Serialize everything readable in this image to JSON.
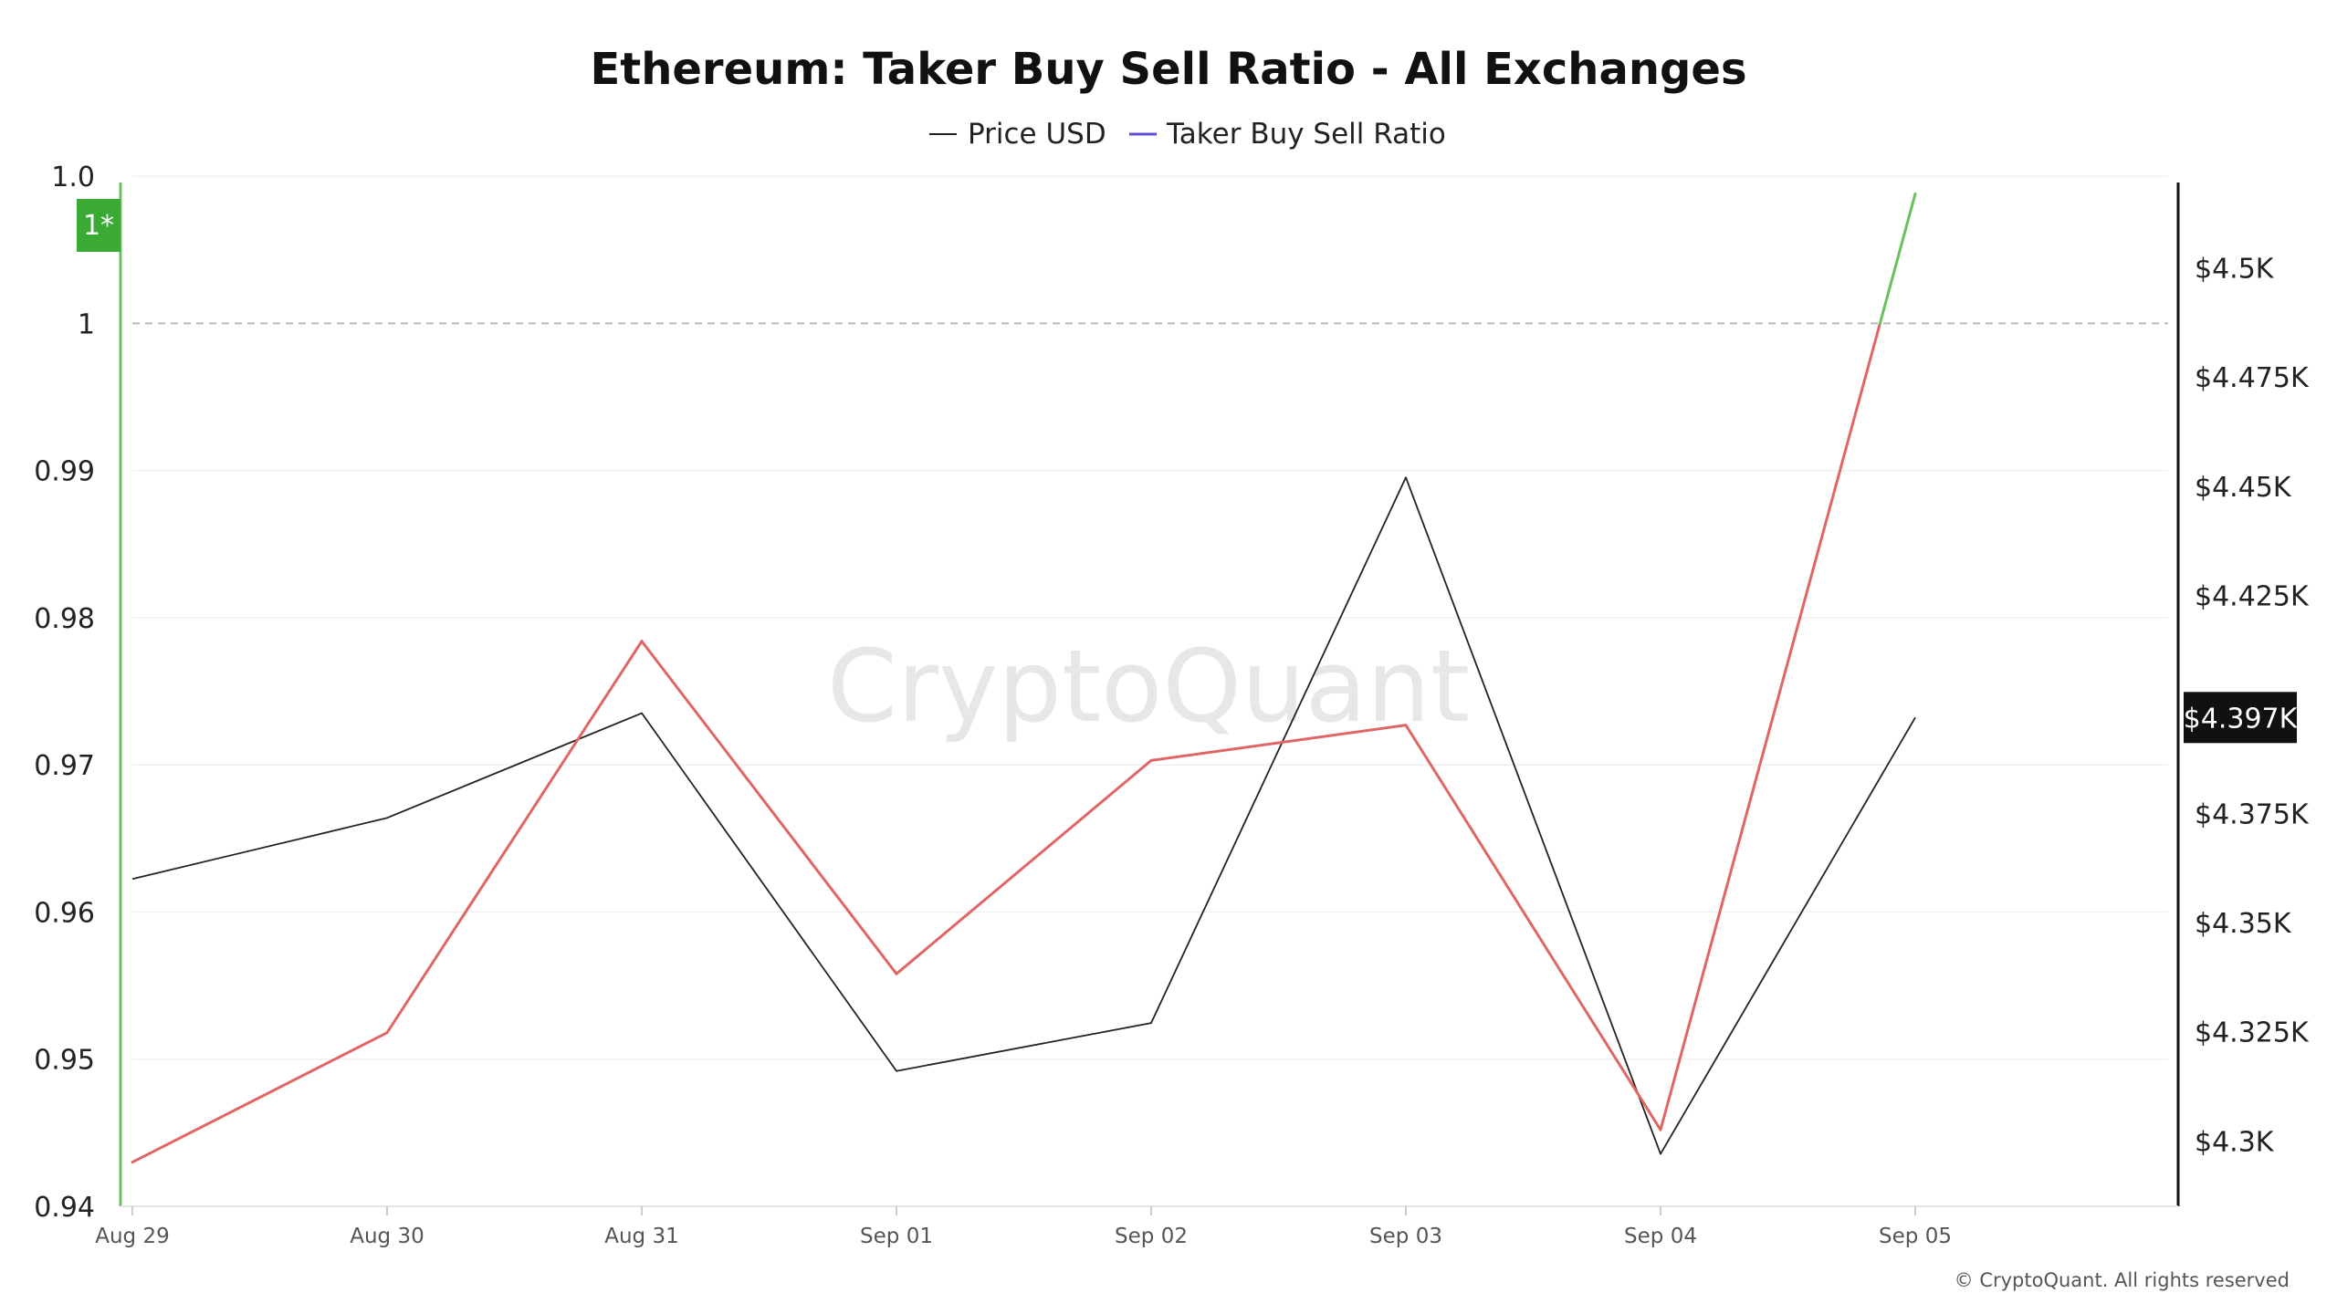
{
  "chart_data": {
    "type": "line",
    "title": "Ethereum: Taker Buy Sell Ratio - All Exchanges",
    "categories": [
      "Aug 29",
      "Aug 30",
      "Aug 31",
      "Sep 01",
      "Sep 02",
      "Sep 03",
      "Sep 04",
      "Sep 05"
    ],
    "series": [
      {
        "name": "Price USD",
        "axis": "right",
        "color": "#222222",
        "values": [
          4360,
          4374,
          4398,
          4316,
          4327,
          4452,
          4297,
          4397
        ]
      },
      {
        "name": "Taker Buy Sell Ratio",
        "axis": "left",
        "legend_color": "#5b4fd6",
        "color_below_1": "#e06666",
        "color_above_1": "#6abf5e",
        "values": [
          0.943,
          0.9518,
          0.9784,
          0.9558,
          0.9703,
          0.9727,
          0.9452,
          1.0088
        ]
      }
    ],
    "y_left": {
      "ylim": [
        0.94,
        1.0097
      ],
      "ticks": [
        {
          "value": 0.94,
          "label": "0.94"
        },
        {
          "value": 0.95,
          "label": "0.95"
        },
        {
          "value": 0.96,
          "label": "0.96"
        },
        {
          "value": 0.97,
          "label": "0.97"
        },
        {
          "value": 0.98,
          "label": "0.98"
        },
        {
          "value": 0.99,
          "label": "0.99"
        },
        {
          "value": 1.0,
          "label": "1"
        },
        {
          "value": 1.01,
          "label": "1.0"
        }
      ],
      "reference_line": 1.0
    },
    "y_right": {
      "ylim": [
        4285,
        4520
      ],
      "ticks": [
        {
          "value": 4300,
          "label": "$4.3K"
        },
        {
          "value": 4325,
          "label": "$4.325K"
        },
        {
          "value": 4350,
          "label": "$4.35K"
        },
        {
          "value": 4375,
          "label": "$4.375K"
        },
        {
          "value": 4400,
          "label": "$4.4K"
        },
        {
          "value": 4425,
          "label": "$4.425K"
        },
        {
          "value": 4450,
          "label": "$4.45K"
        },
        {
          "value": 4475,
          "label": "$4.475K"
        },
        {
          "value": 4500,
          "label": "$4.5K"
        }
      ]
    },
    "legend": {
      "placement": "top-center"
    },
    "grid": true
  },
  "labels": {
    "watermark": "CryptoQuant",
    "copyright": "© CryptoQuant. All rights reserved",
    "badge": "1*",
    "current_price": "$4.397K"
  },
  "colors": {
    "badge_bg": "#3aaa35",
    "price_tag_bg": "#111111",
    "left_axis": "#6abf5e",
    "right_axis": "#111111"
  }
}
